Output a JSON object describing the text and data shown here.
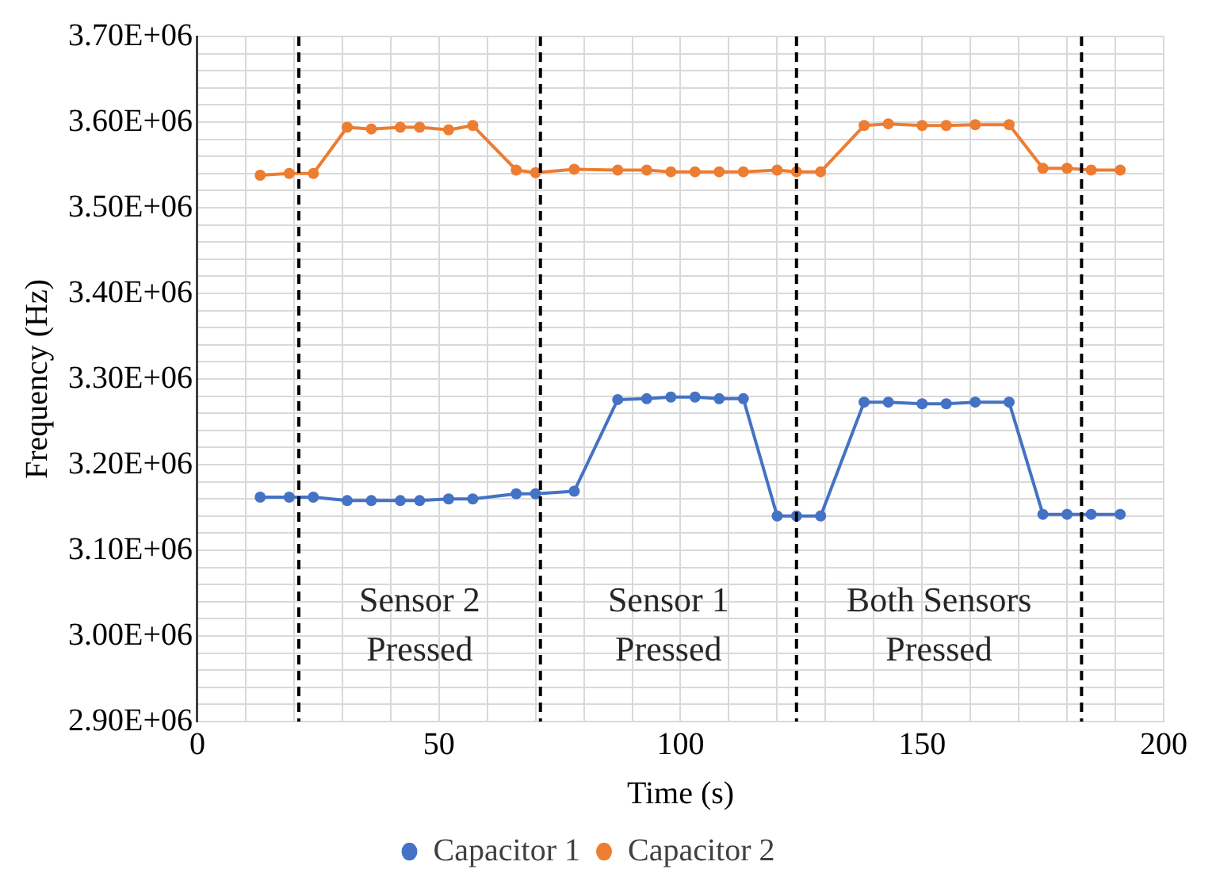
{
  "chart_data": {
    "type": "line",
    "xlabel": "Time (s)",
    "ylabel": "Frequency (Hz)",
    "x": [
      13,
      19,
      24,
      31,
      36,
      42,
      46,
      52,
      57,
      66,
      70,
      78,
      87,
      93,
      98,
      103,
      108,
      113,
      120,
      124,
      129,
      138,
      143,
      150,
      155,
      161,
      168,
      175,
      180,
      185,
      191
    ],
    "series": [
      {
        "name": "Capacitor 1",
        "color": "#4472c4",
        "values": [
          3162000,
          3162000,
          3162000,
          3158000,
          3158000,
          3158000,
          3158000,
          3160000,
          3160000,
          3166000,
          3166000,
          3169000,
          3276000,
          3277000,
          3279000,
          3279000,
          3277000,
          3277000,
          3140000,
          3140000,
          3140000,
          3273000,
          3273000,
          3271000,
          3271000,
          3273000,
          3273000,
          3142000,
          3142000,
          3142000,
          3142000
        ]
      },
      {
        "name": "Capacitor 2",
        "color": "#ed7d31",
        "values": [
          3538000,
          3540000,
          3540000,
          3594000,
          3592000,
          3594000,
          3594000,
          3591000,
          3596000,
          3544000,
          3541000,
          3545000,
          3544000,
          3544000,
          3542000,
          3542000,
          3542000,
          3542000,
          3544000,
          3542000,
          3542000,
          3596000,
          3598000,
          3596000,
          3596000,
          3597000,
          3597000,
          3546000,
          3546000,
          3544000,
          3544000
        ]
      }
    ],
    "xlim": [
      0,
      200
    ],
    "xticks": [
      0,
      {
        "value": 10,
        "label": null
      },
      {
        "value": 20,
        "label": null
      },
      {
        "value": 30,
        "label": null
      },
      {
        "value": 40,
        "label": null
      },
      50,
      {
        "value": 60,
        "label": null
      },
      {
        "value": 70,
        "label": null
      },
      {
        "value": 80,
        "label": null
      },
      {
        "value": 90,
        "label": null
      },
      100,
      {
        "value": 110,
        "label": null
      },
      {
        "value": 120,
        "label": null
      },
      {
        "value": 130,
        "label": null
      },
      {
        "value": 140,
        "label": null
      },
      150,
      {
        "value": 160,
        "label": null
      },
      {
        "value": 170,
        "label": null
      },
      {
        "value": 180,
        "label": null
      },
      {
        "value": 190,
        "label": null
      },
      200
    ],
    "ylim": [
      2900000,
      3700000
    ],
    "yticks": [
      {
        "value": 2900000,
        "label": "2.90E+06"
      },
      {
        "value": 2920000,
        "label": null
      },
      {
        "value": 2940000,
        "label": null
      },
      {
        "value": 2960000,
        "label": null
      },
      {
        "value": 2980000,
        "label": null
      },
      {
        "value": 3000000,
        "label": "3.00E+06"
      },
      {
        "value": 3020000,
        "label": null
      },
      {
        "value": 3040000,
        "label": null
      },
      {
        "value": 3060000,
        "label": null
      },
      {
        "value": 3080000,
        "label": null
      },
      {
        "value": 3100000,
        "label": "3.10E+06"
      },
      {
        "value": 3120000,
        "label": null
      },
      {
        "value": 3140000,
        "label": null
      },
      {
        "value": 3160000,
        "label": null
      },
      {
        "value": 3180000,
        "label": null
      },
      {
        "value": 3200000,
        "label": "3.20E+06"
      },
      {
        "value": 3220000,
        "label": null
      },
      {
        "value": 3240000,
        "label": null
      },
      {
        "value": 3260000,
        "label": null
      },
      {
        "value": 3280000,
        "label": null
      },
      {
        "value": 3300000,
        "label": "3.30E+06"
      },
      {
        "value": 3320000,
        "label": null
      },
      {
        "value": 3340000,
        "label": null
      },
      {
        "value": 3360000,
        "label": null
      },
      {
        "value": 3380000,
        "label": null
      },
      {
        "value": 3400000,
        "label": "3.40E+06"
      },
      {
        "value": 3420000,
        "label": null
      },
      {
        "value": 3440000,
        "label": null
      },
      {
        "value": 3460000,
        "label": null
      },
      {
        "value": 3480000,
        "label": null
      },
      {
        "value": 3500000,
        "label": "3.50E+06"
      },
      {
        "value": 3520000,
        "label": null
      },
      {
        "value": 3540000,
        "label": null
      },
      {
        "value": 3560000,
        "label": null
      },
      {
        "value": 3580000,
        "label": null
      },
      {
        "value": 3600000,
        "label": "3.60E+06"
      },
      {
        "value": 3620000,
        "label": null
      },
      {
        "value": 3640000,
        "label": null
      },
      {
        "value": 3660000,
        "label": null
      },
      {
        "value": 3680000,
        "label": null
      },
      {
        "value": 3700000,
        "label": "3.70E+06"
      }
    ],
    "ref_lines": [
      {
        "axis": "x",
        "value": 21,
        "color": "#000000",
        "line_style": "dashed"
      },
      {
        "axis": "x",
        "value": 71,
        "color": "#000000",
        "line_style": "dashed"
      },
      {
        "axis": "x",
        "value": 124,
        "color": "#000000",
        "line_style": "dashed"
      },
      {
        "axis": "x",
        "value": 183,
        "color": "#000000",
        "line_style": "dashed"
      }
    ],
    "annotations": [
      "Sensor 2\nPressed",
      "Sensor 1\nPressed",
      "Both Sensors\nPressed"
    ],
    "grid": true,
    "legend": "bottom",
    "marker": "circle",
    "line_style": "solid"
  }
}
